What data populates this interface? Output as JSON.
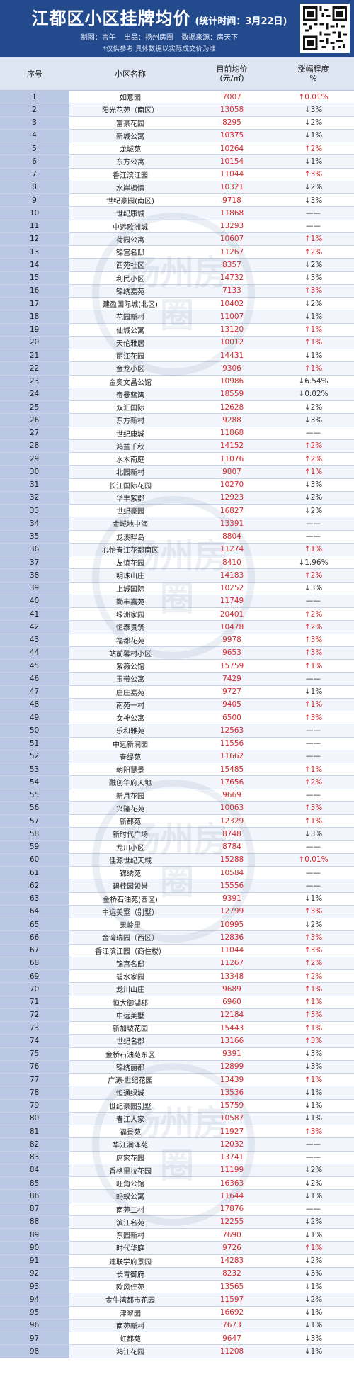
{
  "header": {
    "title": "江都区小区挂牌均价",
    "time": "(统计时间：3月22日)",
    "meta": [
      "制图：言午",
      "出品：扬州房圈",
      "数据来源：房天下"
    ],
    "note": "*仅供参考 具体数据以实际成交价为准"
  },
  "table": {
    "headers": {
      "no": "序号",
      "name": "小区名称",
      "price": "目前均价\n(元/㎡)",
      "change": "涨幅程度\n%"
    },
    "rows": [
      {
        "no": "1",
        "name": "如意园",
        "price": "7007",
        "change": "↑0.01%",
        "dir": "up"
      },
      {
        "no": "2",
        "name": "阳光花苑（南区）",
        "price": "13058",
        "change": "↓3%",
        "dir": "down"
      },
      {
        "no": "3",
        "name": "富豪花园",
        "price": "8295",
        "change": "↓2%",
        "dir": "down"
      },
      {
        "no": "4",
        "name": "新城公寓",
        "price": "10375",
        "change": "↓1%",
        "dir": "down"
      },
      {
        "no": "5",
        "name": "龙城苑",
        "price": "10264",
        "change": "↑2%",
        "dir": "up"
      },
      {
        "no": "6",
        "name": "东方公寓",
        "price": "10154",
        "change": "↓1%",
        "dir": "down"
      },
      {
        "no": "7",
        "name": "香江滨江园",
        "price": "11044",
        "change": "↑3%",
        "dir": "up"
      },
      {
        "no": "8",
        "name": "水岸枫情",
        "price": "10321",
        "change": "↓2%",
        "dir": "down"
      },
      {
        "no": "9",
        "name": "世纪豪园(南区)",
        "price": "9718",
        "change": "↓3%",
        "dir": "down"
      },
      {
        "no": "10",
        "name": "世纪康城",
        "price": "11868",
        "change": "——",
        "dir": "flat"
      },
      {
        "no": "11",
        "name": "中远欧洲城",
        "price": "13293",
        "change": "——",
        "dir": "flat"
      },
      {
        "no": "12",
        "name": "荷园公寓",
        "price": "10607",
        "change": "↑1%",
        "dir": "up"
      },
      {
        "no": "13",
        "name": "锦宫名邸",
        "price": "11267",
        "change": "↑2%",
        "dir": "up"
      },
      {
        "no": "14",
        "name": "西苑社区",
        "price": "8357",
        "change": "↓2%",
        "dir": "down"
      },
      {
        "no": "15",
        "name": "利民小区",
        "price": "14732",
        "change": "↓3%",
        "dir": "down"
      },
      {
        "no": "16",
        "name": "锦绣嘉苑",
        "price": "7133",
        "change": "↑3%",
        "dir": "up"
      },
      {
        "no": "17",
        "name": "建盈国际城(北区)",
        "price": "10402",
        "change": "↓2%",
        "dir": "down"
      },
      {
        "no": "18",
        "name": "花园新村",
        "price": "11007",
        "change": "↓1%",
        "dir": "down"
      },
      {
        "no": "19",
        "name": "仙城公寓",
        "price": "13120",
        "change": "↑1%",
        "dir": "up"
      },
      {
        "no": "20",
        "name": "天伦雅居",
        "price": "10012",
        "change": "↑1%",
        "dir": "up"
      },
      {
        "no": "21",
        "name": "丽江花园",
        "price": "14431",
        "change": "↓1%",
        "dir": "down"
      },
      {
        "no": "22",
        "name": "金龙小区",
        "price": "9306",
        "change": "↑1%",
        "dir": "up"
      },
      {
        "no": "23",
        "name": "金奥文昌公馆",
        "price": "10986",
        "change": "↓6.54%",
        "dir": "down"
      },
      {
        "no": "24",
        "name": "帝曼蓝湾",
        "price": "18559",
        "change": "↓0.02%",
        "dir": "down"
      },
      {
        "no": "25",
        "name": "双汇国际",
        "price": "12628",
        "change": "↓2%",
        "dir": "down"
      },
      {
        "no": "26",
        "name": "东方新村",
        "price": "9288",
        "change": "↓3%",
        "dir": "down"
      },
      {
        "no": "27",
        "name": "世纪康城",
        "price": "11868",
        "change": "——",
        "dir": "flat"
      },
      {
        "no": "28",
        "name": "鸿益千秋",
        "price": "14152",
        "change": "↑2%",
        "dir": "up"
      },
      {
        "no": "29",
        "name": "水木南庭",
        "price": "11076",
        "change": "↑2%",
        "dir": "up"
      },
      {
        "no": "30",
        "name": "北园新村",
        "price": "9807",
        "change": "↑1%",
        "dir": "up"
      },
      {
        "no": "31",
        "name": "长江国际花园",
        "price": "10270",
        "change": "↓3%",
        "dir": "down"
      },
      {
        "no": "32",
        "name": "华丰紫郡",
        "price": "12923",
        "change": "↓2%",
        "dir": "down"
      },
      {
        "no": "33",
        "name": "世纪豪园",
        "price": "16827",
        "change": "↓2%",
        "dir": "down"
      },
      {
        "no": "34",
        "name": "金城地中海",
        "price": "13391",
        "change": "——",
        "dir": "flat"
      },
      {
        "no": "35",
        "name": "龙溪畔岛",
        "price": "8804",
        "change": "——",
        "dir": "flat"
      },
      {
        "no": "36",
        "name": "心怡春江花都南区",
        "price": "11274",
        "change": "↑1%",
        "dir": "up"
      },
      {
        "no": "37",
        "name": "友谊花园",
        "price": "8410",
        "change": "↓1.96%",
        "dir": "down"
      },
      {
        "no": "38",
        "name": "明珠山庄",
        "price": "14183",
        "change": "↑2%",
        "dir": "up"
      },
      {
        "no": "39",
        "name": "上城国际",
        "price": "10252",
        "change": "↓3%",
        "dir": "down"
      },
      {
        "no": "40",
        "name": "勤丰嘉苑",
        "price": "11749",
        "change": "——",
        "dir": "flat"
      },
      {
        "no": "41",
        "name": "绿洲家园",
        "price": "20401",
        "change": "↑2%",
        "dir": "up"
      },
      {
        "no": "42",
        "name": "恒泰贵筑",
        "price": "10478",
        "change": "↑2%",
        "dir": "up"
      },
      {
        "no": "43",
        "name": "福都花苑",
        "price": "9978",
        "change": "↑3%",
        "dir": "up"
      },
      {
        "no": "44",
        "name": "站前馨村小区",
        "price": "9653",
        "change": "↑3%",
        "dir": "up"
      },
      {
        "no": "45",
        "name": "紫薇公馆",
        "price": "15759",
        "change": "↑1%",
        "dir": "up"
      },
      {
        "no": "46",
        "name": "玉带公寓",
        "price": "7429",
        "change": "——",
        "dir": "flat"
      },
      {
        "no": "47",
        "name": "唐庄嘉苑",
        "price": "9727",
        "change": "↓1%",
        "dir": "down"
      },
      {
        "no": "48",
        "name": "南苑一村",
        "price": "9405",
        "change": "↑1%",
        "dir": "up"
      },
      {
        "no": "49",
        "name": "女神公寓",
        "price": "6500",
        "change": "↑3%",
        "dir": "up"
      },
      {
        "no": "50",
        "name": "乐和雅苑",
        "price": "12563",
        "change": "——",
        "dir": "flat"
      },
      {
        "no": "51",
        "name": "中远新润园",
        "price": "11556",
        "change": "——",
        "dir": "flat"
      },
      {
        "no": "52",
        "name": "春缇苑",
        "price": "11662",
        "change": "——",
        "dir": "flat"
      },
      {
        "no": "53",
        "name": "朝阳慧景",
        "price": "15485",
        "change": "↑1%",
        "dir": "up"
      },
      {
        "no": "54",
        "name": "融创华府天地",
        "price": "17656",
        "change": "↑2%",
        "dir": "up"
      },
      {
        "no": "55",
        "name": "新月花园",
        "price": "9669",
        "change": "——",
        "dir": "flat"
      },
      {
        "no": "56",
        "name": "兴隆花苑",
        "price": "10063",
        "change": "↑3%",
        "dir": "up"
      },
      {
        "no": "57",
        "name": "新都苑",
        "price": "12329",
        "change": "↑1%",
        "dir": "up"
      },
      {
        "no": "58",
        "name": "新时代广场",
        "price": "8748",
        "change": "↓3%",
        "dir": "down"
      },
      {
        "no": "59",
        "name": "龙川小区",
        "price": "8784",
        "change": "——",
        "dir": "flat"
      },
      {
        "no": "60",
        "name": "佳源世纪天城",
        "price": "15288",
        "change": "↑0.01%",
        "dir": "up"
      },
      {
        "no": "61",
        "name": "锦绣苑",
        "price": "10584",
        "change": "——",
        "dir": "flat"
      },
      {
        "no": "62",
        "name": "碧桂园领誉",
        "price": "15556",
        "change": "——",
        "dir": "flat"
      },
      {
        "no": "63",
        "name": "金桥石油苑(西区)",
        "price": "9391",
        "change": "↓1%",
        "dir": "down"
      },
      {
        "no": "64",
        "name": "中远美墅（别墅）",
        "price": "12799",
        "change": "↑3%",
        "dir": "up"
      },
      {
        "no": "65",
        "name": "果岭里",
        "price": "10995",
        "change": "↓2%",
        "dir": "down"
      },
      {
        "no": "66",
        "name": "金湾瑞园（西区）",
        "price": "12836",
        "change": "↑3%",
        "dir": "up"
      },
      {
        "no": "67",
        "name": "香江滨江园（商住楼）",
        "price": "11044",
        "change": "↑3%",
        "dir": "up"
      },
      {
        "no": "68",
        "name": "锦宫名邸",
        "price": "11267",
        "change": "↑2%",
        "dir": "up"
      },
      {
        "no": "69",
        "name": "碧水家园",
        "price": "13348",
        "change": "↑2%",
        "dir": "up"
      },
      {
        "no": "70",
        "name": "龙川山庄",
        "price": "9689",
        "change": "↑1%",
        "dir": "up"
      },
      {
        "no": "71",
        "name": "恒大御湖郡",
        "price": "6960",
        "change": "↑1%",
        "dir": "up"
      },
      {
        "no": "72",
        "name": "中远美墅",
        "price": "12184",
        "change": "↑3%",
        "dir": "up"
      },
      {
        "no": "73",
        "name": "新加坡花园",
        "price": "15443",
        "change": "↑1%",
        "dir": "up"
      },
      {
        "no": "74",
        "name": "世纪名郡",
        "price": "13166",
        "change": "↑3%",
        "dir": "up"
      },
      {
        "no": "75",
        "name": "金桥石油苑东区",
        "price": "9391",
        "change": "↓3%",
        "dir": "down"
      },
      {
        "no": "76",
        "name": "锦绣丽都",
        "price": "12899",
        "change": "↓3%",
        "dir": "down"
      },
      {
        "no": "77",
        "name": "广源·世纪花园",
        "price": "13439",
        "change": "↑1%",
        "dir": "up"
      },
      {
        "no": "78",
        "name": "恒通绿城",
        "price": "13536",
        "change": "↓1%",
        "dir": "down"
      },
      {
        "no": "79",
        "name": "世纪豪园别墅",
        "price": "15759",
        "change": "↓1%",
        "dir": "down"
      },
      {
        "no": "80",
        "name": "春江人家",
        "price": "10587",
        "change": "↓1%",
        "dir": "down"
      },
      {
        "no": "81",
        "name": "福景苑",
        "price": "11927",
        "change": "↑3%",
        "dir": "up"
      },
      {
        "no": "82",
        "name": "华江润泽苑",
        "price": "12032",
        "change": "——",
        "dir": "flat"
      },
      {
        "no": "83",
        "name": "席家花园",
        "price": "13741",
        "change": "——",
        "dir": "flat"
      },
      {
        "no": "84",
        "name": "香格里拉花园",
        "price": "11199",
        "change": "↓2%",
        "dir": "down"
      },
      {
        "no": "85",
        "name": "旺角公馆",
        "price": "16363",
        "change": "↓2%",
        "dir": "down"
      },
      {
        "no": "86",
        "name": "蚂蚁公寓",
        "price": "11644",
        "change": "↓1%",
        "dir": "down"
      },
      {
        "no": "87",
        "name": "南苑二村",
        "price": "17876",
        "change": "——",
        "dir": "flat"
      },
      {
        "no": "88",
        "name": "滨江名苑",
        "price": "12255",
        "change": "↓2%",
        "dir": "down"
      },
      {
        "no": "89",
        "name": "东园新村",
        "price": "7690",
        "change": "↓1%",
        "dir": "down"
      },
      {
        "no": "90",
        "name": "时代华庭",
        "price": "9726",
        "change": "↑1%",
        "dir": "up"
      },
      {
        "no": "91",
        "name": "建联学府景园",
        "price": "14283",
        "change": "↓2%",
        "dir": "down"
      },
      {
        "no": "92",
        "name": "长青御府",
        "price": "8232",
        "change": "↓3%",
        "dir": "down"
      },
      {
        "no": "93",
        "name": "欧风佳苑",
        "price": "13565",
        "change": "↓1%",
        "dir": "down"
      },
      {
        "no": "94",
        "name": "金牛湾都市花园",
        "price": "11597",
        "change": "↓2%",
        "dir": "down"
      },
      {
        "no": "95",
        "name": "津翠园",
        "price": "16692",
        "change": "↓1%",
        "dir": "down"
      },
      {
        "no": "96",
        "name": "南苑新村",
        "price": "7673",
        "change": "↓1%",
        "dir": "down"
      },
      {
        "no": "97",
        "name": "虹都苑",
        "price": "9647",
        "change": "↓3%",
        "dir": "down"
      },
      {
        "no": "98",
        "name": "鸿江花园",
        "price": "11208",
        "change": "↓1%",
        "dir": "down"
      }
    ]
  },
  "watermark": {
    "text": "扬州房圈"
  },
  "colors": {
    "header_bg": "#234a8c",
    "price": "#d6282c",
    "up": "#d6282c",
    "no_col": "#b9c7e4"
  }
}
